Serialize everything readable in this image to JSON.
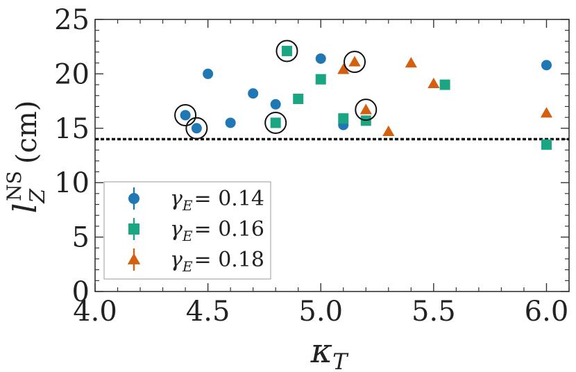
{
  "chart_data": {
    "type": "scatter",
    "title": "",
    "xlabel": "κ",
    "xlabel_sub": "T",
    "ylabel": "l",
    "ylabel_sub": "Z",
    "ylabel_sup": "NS",
    "ylabel_unit": "(cm)",
    "xlim": [
      4.0,
      6.1
    ],
    "ylim": [
      0,
      25
    ],
    "xticks": [
      4.0,
      4.5,
      5.0,
      5.5,
      6.0
    ],
    "xtick_labels": [
      "4.0",
      "4.5",
      "5.0",
      "5.5",
      "6.0"
    ],
    "yticks": [
      0,
      5,
      10,
      15,
      20,
      25
    ],
    "ytick_labels": [
      "0",
      "5",
      "10",
      "15",
      "20",
      "25"
    ],
    "grid": false,
    "reference_line": {
      "y": 14.0,
      "style": "dotted"
    },
    "legend_position": "lower-left",
    "series": [
      {
        "name": "γE = 0.14",
        "legend_symbol": "γ",
        "legend_sub": "E",
        "legend_value": "= 0.14",
        "color": "#1f77b4",
        "marker": "circle",
        "points": [
          {
            "x": 4.4,
            "y": 16.2
          },
          {
            "x": 4.45,
            "y": 15.0
          },
          {
            "x": 4.5,
            "y": 20.0
          },
          {
            "x": 4.6,
            "y": 15.5
          },
          {
            "x": 4.7,
            "y": 18.2
          },
          {
            "x": 4.8,
            "y": 17.2
          },
          {
            "x": 5.0,
            "y": 21.4
          },
          {
            "x": 5.1,
            "y": 15.3
          },
          {
            "x": 6.0,
            "y": 20.8
          }
        ]
      },
      {
        "name": "γE = 0.16",
        "legend_symbol": "γ",
        "legend_sub": "E",
        "legend_value": "= 0.16",
        "color": "#1aa682",
        "marker": "square",
        "points": [
          {
            "x": 4.8,
            "y": 15.5
          },
          {
            "x": 4.85,
            "y": 22.1
          },
          {
            "x": 4.9,
            "y": 17.7
          },
          {
            "x": 5.0,
            "y": 19.5
          },
          {
            "x": 5.1,
            "y": 15.9
          },
          {
            "x": 5.2,
            "y": 15.7
          },
          {
            "x": 5.55,
            "y": 19.0
          },
          {
            "x": 6.0,
            "y": 13.5
          }
        ]
      },
      {
        "name": "γE = 0.18",
        "legend_symbol": "γ",
        "legend_sub": "E",
        "legend_value": "= 0.18",
        "color": "#d45f0e",
        "marker": "triangle",
        "points": [
          {
            "x": 5.1,
            "y": 20.4
          },
          {
            "x": 5.15,
            "y": 21.1
          },
          {
            "x": 5.2,
            "y": 16.7
          },
          {
            "x": 5.3,
            "y": 14.7
          },
          {
            "x": 5.4,
            "y": 21.0
          },
          {
            "x": 5.5,
            "y": 19.1
          },
          {
            "x": 6.0,
            "y": 16.4
          }
        ]
      }
    ],
    "highlighted_points": [
      {
        "x": 4.4,
        "y": 16.2
      },
      {
        "x": 4.45,
        "y": 15.0
      },
      {
        "x": 4.8,
        "y": 15.5
      },
      {
        "x": 4.85,
        "y": 22.1
      },
      {
        "x": 5.15,
        "y": 21.1
      },
      {
        "x": 5.2,
        "y": 16.7
      }
    ]
  }
}
